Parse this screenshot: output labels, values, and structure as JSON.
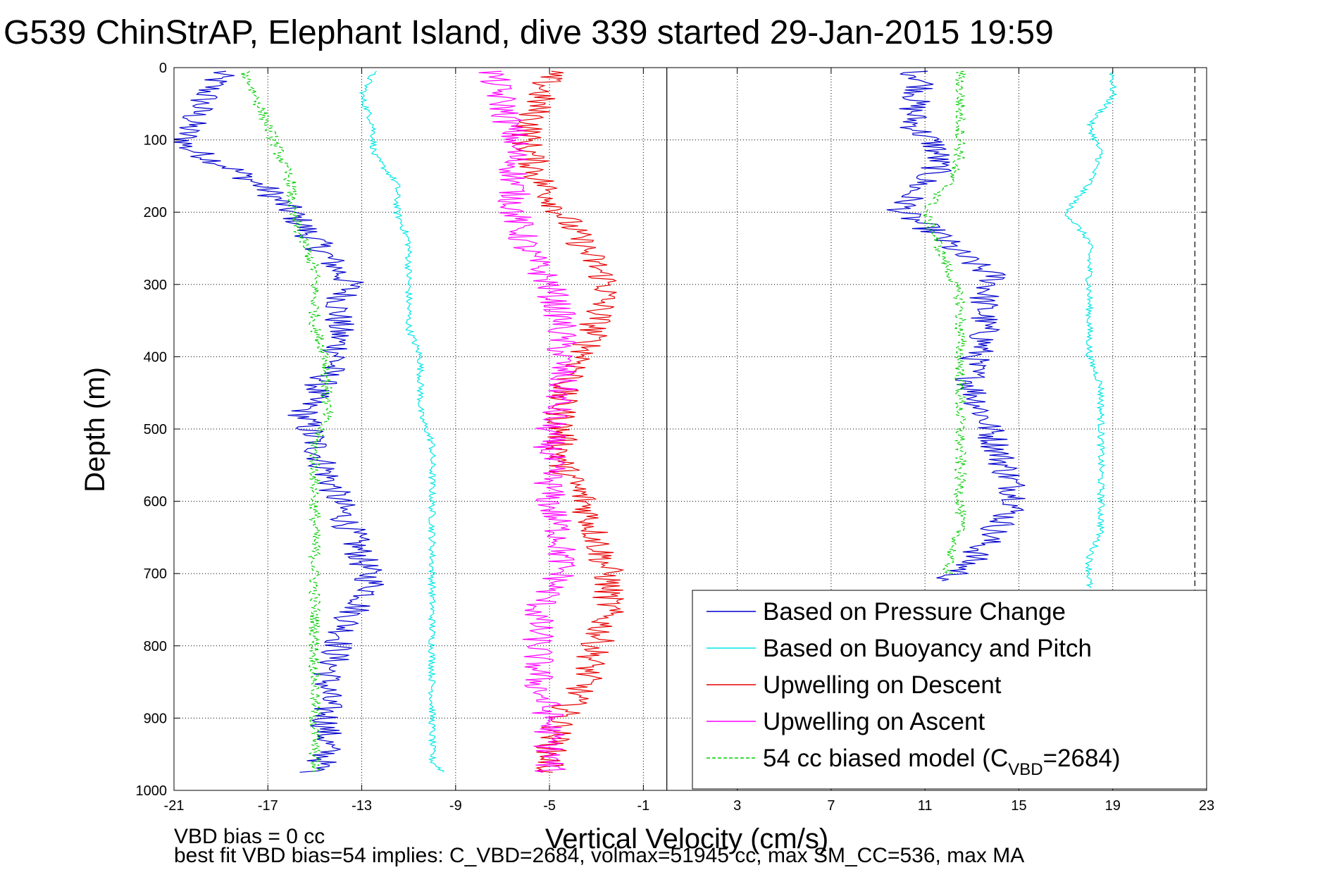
{
  "chart_data": {
    "type": "line",
    "title": "G539 ChinStrAP, Elephant Island, dive 339 started 29-Jan-2015 19:59",
    "xlabel": "Vertical Velocity (cm/s)",
    "ylabel": "Depth (m)",
    "xlim": [
      -21,
      23
    ],
    "ylim": [
      1000,
      0
    ],
    "y_reversed": true,
    "grid": true,
    "xticks": [
      -21,
      -17,
      -13,
      -9,
      -5,
      -1,
      3,
      7,
      11,
      15,
      19,
      23
    ],
    "yticks": [
      0,
      100,
      200,
      300,
      400,
      500,
      600,
      700,
      800,
      900,
      1000
    ],
    "xtick_labels": [
      "-21",
      "-17",
      "-13",
      "-9",
      "-5",
      "-1",
      "3",
      "7",
      "11",
      "15",
      "19",
      "23"
    ],
    "ytick_labels": [
      "0",
      "100",
      "200",
      "300",
      "400",
      "500",
      "600",
      "700",
      "800",
      "900",
      "1000"
    ],
    "vertical_lines": [
      {
        "x": 0,
        "style": "solid",
        "color": "#000000"
      },
      {
        "x": 22.5,
        "style": "dashed",
        "color": "#000000"
      }
    ],
    "legend_position": "bottom-right",
    "series": [
      {
        "name": "Based on Pressure Change",
        "color": "#0000cc",
        "style": "solid",
        "segments": [
          {
            "depth": [
              5,
              30,
              60,
              90,
              110,
              140,
              170,
              200,
              240,
              280,
              300,
              330,
              360,
              400,
              450,
              480,
              520,
              560,
              600,
              640,
              680,
              720,
              760,
              800,
              850,
              900,
              950,
              975
            ],
            "velocity": [
              -19,
              -19.5,
              -20,
              -20.5,
              -20.5,
              -18.5,
              -17,
              -16,
              -15,
              -14,
              -13.5,
              -14,
              -14,
              -14,
              -15,
              -15.5,
              -15,
              -14.5,
              -14,
              -13.5,
              -13,
              -12.5,
              -13.5,
              -14,
              -14.5,
              -14.5,
              -14.5,
              -15
            ]
          },
          {
            "depth": [
              5,
              20,
              50,
              80,
              110,
              140,
              170,
              200,
              230,
              260,
              290,
              320,
              350,
              380,
              410,
              440,
              480,
              520,
              560,
              600,
              640,
              680,
              710
            ],
            "velocity": [
              10.5,
              11,
              10.5,
              10.5,
              11.5,
              11.5,
              10.5,
              10,
              11.5,
              12.5,
              14,
              13.5,
              13.5,
              13.5,
              13,
              13,
              13.5,
              14,
              14.5,
              15,
              14,
              13,
              12
            ]
          }
        ]
      },
      {
        "name": "Based on Buoyancy and Pitch",
        "color": "#00e5e5",
        "style": "solid",
        "segments": [
          {
            "depth": [
              5,
              40,
              80,
              120,
              160,
              200,
              240,
              280,
              320,
              360,
              400,
              440,
              480,
              520,
              560,
              600,
              640,
              680,
              720,
              760,
              800,
              840,
              880,
              920,
              960,
              975
            ],
            "velocity": [
              -12.5,
              -13,
              -12.5,
              -12.5,
              -11.5,
              -11.5,
              -11,
              -11,
              -11,
              -11,
              -10.5,
              -10.5,
              -10.5,
              -10,
              -10,
              -10,
              -10,
              -10,
              -10,
              -10,
              -10,
              -10,
              -10,
              -10,
              -10,
              -9.5
            ]
          },
          {
            "depth": [
              5,
              40,
              80,
              120,
              160,
              200,
              240,
              280,
              320,
              360,
              400,
              440,
              480,
              520,
              560,
              600,
              640,
              680,
              720
            ],
            "velocity": [
              19,
              19,
              18,
              18.5,
              18,
              17,
              18,
              18,
              18,
              18,
              18,
              18.5,
              18.5,
              18.5,
              18.5,
              18.5,
              18.5,
              18,
              18
            ]
          }
        ]
      },
      {
        "name": "Upwelling on Descent",
        "color": "#e60000",
        "style": "solid",
        "segments": [
          {
            "depth": [
              5,
              50,
              100,
              150,
              200,
              250,
              300,
              350,
              400,
              450,
              500,
              550,
              600,
              650,
              700,
              750,
              800,
              850,
              900,
              950,
              975
            ],
            "velocity": [
              -5,
              -5.5,
              -6,
              -5.5,
              -4.5,
              -3.5,
              -2.5,
              -3,
              -3.5,
              -4.5,
              -4.5,
              -4.5,
              -3.5,
              -3,
              -2.5,
              -2.5,
              -3,
              -3.5,
              -4.5,
              -5,
              -5
            ]
          }
        ]
      },
      {
        "name": "Upwelling on Ascent",
        "color": "#ff00ff",
        "style": "solid",
        "segments": [
          {
            "depth": [
              5,
              50,
              100,
              150,
              200,
              250,
              300,
              350,
              400,
              450,
              500,
              550,
              600,
              650,
              700,
              750,
              800,
              850,
              900,
              950,
              975
            ],
            "velocity": [
              -7.5,
              -7,
              -6.5,
              -6.5,
              -6.5,
              -6,
              -5,
              -4.5,
              -4.5,
              -4.5,
              -5,
              -5,
              -5,
              -4.5,
              -4.5,
              -5.5,
              -5.5,
              -5.5,
              -5,
              -5,
              -5
            ]
          }
        ]
      },
      {
        "name": "54 cc biased model (CVBD=2684)",
        "color": "#00cc00",
        "style": "dashed",
        "segments": [
          {
            "depth": [
              5,
              40,
              80,
              120,
              160,
              200,
              240,
              280,
              320,
              360,
              400,
              440,
              480,
              520,
              560,
              600,
              640,
              680,
              720,
              760,
              800,
              840,
              880,
              920,
              960,
              975
            ],
            "velocity": [
              -18,
              -17.5,
              -17,
              -16.5,
              -16,
              -16,
              -15.5,
              -15,
              -15,
              -15,
              -14.5,
              -14.5,
              -14.5,
              -15,
              -15,
              -15,
              -15,
              -15,
              -15,
              -15,
              -15,
              -15,
              -15,
              -15,
              -15,
              -15
            ]
          },
          {
            "depth": [
              5,
              40,
              80,
              120,
              160,
              200,
              240,
              280,
              320,
              360,
              400,
              440,
              480,
              520,
              560,
              600,
              640,
              680,
              700
            ],
            "velocity": [
              12.5,
              12.5,
              12.5,
              12.5,
              12,
              11,
              11.5,
              12,
              12.5,
              12.5,
              12.5,
              12.5,
              12.5,
              12.5,
              12.5,
              12.5,
              12.5,
              12,
              12
            ]
          }
        ]
      }
    ],
    "annotations": [
      "VBD bias = 0 cc",
      "best fit VBD bias=54 implies: C_VBD=2684, volmax=51945 cc, max SM_CC=536, max MA"
    ]
  },
  "legend": {
    "entries": [
      {
        "text": "Based on Pressure Change"
      },
      {
        "text": "Based on Buoyancy and Pitch"
      },
      {
        "text": "Upwelling on Descent"
      },
      {
        "text": "Upwelling on Ascent"
      },
      {
        "text_main": "54 cc biased model (C",
        "text_sub": "VBD",
        "text_tail": "=2684)"
      }
    ]
  }
}
